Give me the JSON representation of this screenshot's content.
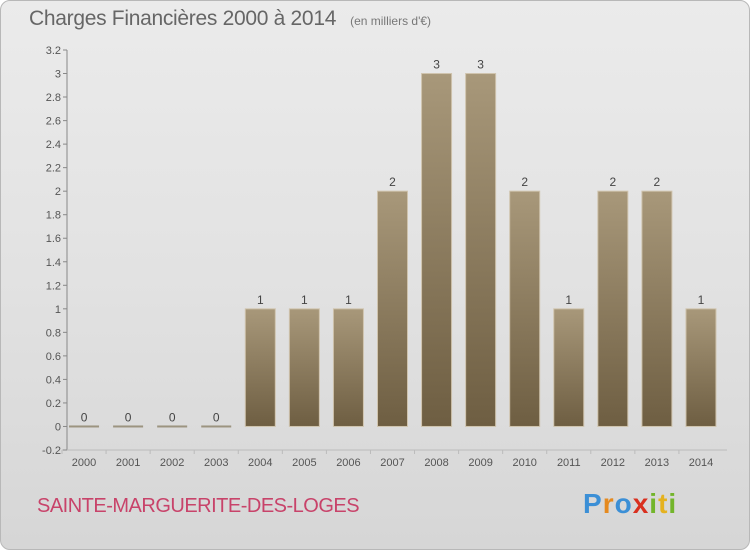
{
  "header": {
    "title": "Charges Financières 2000 à 2014",
    "subtitle": "(en milliers d'€)"
  },
  "footer": {
    "place": "SAINTE-MARGUERITE-DES-LOGES",
    "logo_letters": [
      "P",
      "r",
      "o",
      "x",
      "i",
      "t",
      "i"
    ],
    "logo_colors": [
      "#3b8fd6",
      "#e58a1f",
      "#3b8fd6",
      "#d9301f",
      "#73b52b",
      "#e5b21f",
      "#73b52b"
    ]
  },
  "chart_data": {
    "type": "bar",
    "title": "Charges Financières 2000 à 2014",
    "subtitle": "(en milliers d'€)",
    "categories": [
      "2000",
      "2001",
      "2002",
      "2003",
      "2004",
      "2005",
      "2006",
      "2007",
      "2008",
      "2009",
      "2010",
      "2011",
      "2012",
      "2013",
      "2014"
    ],
    "values": [
      0,
      0,
      0,
      0,
      1,
      1,
      1,
      2,
      3,
      3,
      2,
      1,
      2,
      2,
      1
    ],
    "value_labels": [
      "0",
      "0",
      "0",
      "0",
      "1",
      "1",
      "1",
      "2",
      "3",
      "3",
      "2",
      "1",
      "2",
      "2",
      "1"
    ],
    "y_ticks": [
      "-0.2",
      "0",
      "0.2",
      "0.4",
      "0.6",
      "0.8",
      "1",
      "1.2",
      "1.4",
      "1.6",
      "1.8",
      "2",
      "2.2",
      "2.4",
      "2.6",
      "2.8",
      "3",
      "3.2"
    ],
    "ylim": [
      -0.2,
      3.2
    ],
    "grid": false,
    "bar_color": "#9c8a6c"
  }
}
